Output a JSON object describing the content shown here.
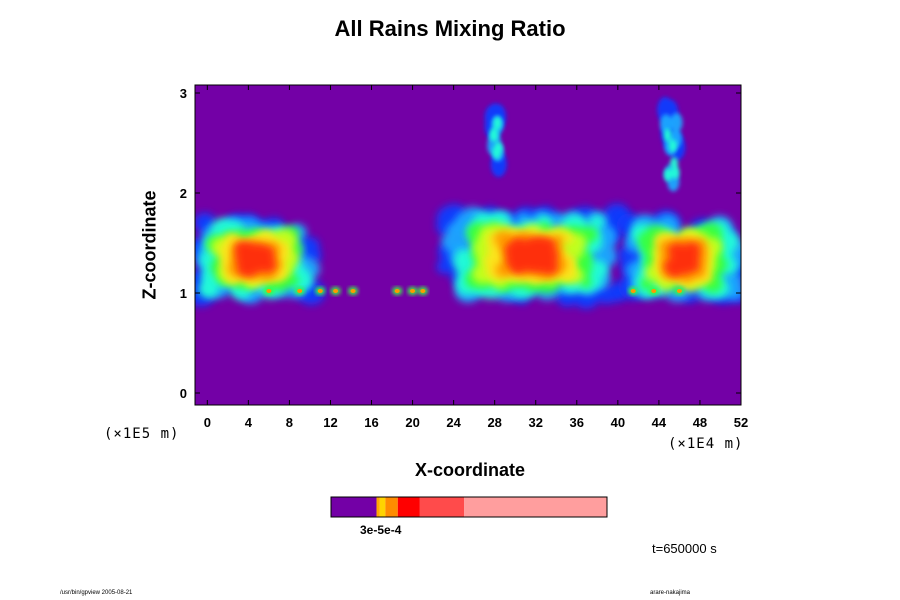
{
  "chart_data": {
    "type": "heatmap",
    "title": "All Rains Mixing Ratio",
    "xlabel": "X-coordinate",
    "ylabel": "Z-coordinate",
    "x_multiplier": "(×1E4 m)",
    "y_multiplier": "(×1E5 m)",
    "x_ticks": [
      0,
      4,
      8,
      12,
      16,
      20,
      24,
      28,
      32,
      36,
      40,
      44,
      48,
      52
    ],
    "y_ticks": [
      0,
      1,
      2,
      3
    ],
    "xlim": [
      -1.2,
      52
    ],
    "ylim": [
      -0.12,
      3.08
    ],
    "background_color": "#7300a6",
    "colorbar": {
      "colors": [
        "#7300a6",
        "#ffaa00",
        "#ff8c00",
        "#ff0000",
        "#ff4b4b",
        "#ff9e9e"
      ],
      "label_text": "3e-5e-4"
    },
    "clouds": [
      {
        "name": "left-layer",
        "x_range": [
          -1.2,
          10.5
        ],
        "z_range": [
          0.95,
          1.72
        ]
      },
      {
        "name": "center-layer",
        "x_range": [
          23,
          40
        ],
        "z_range": [
          0.95,
          1.8
        ]
      },
      {
        "name": "right-layer",
        "x_range": [
          41,
          52
        ],
        "z_range": [
          0.95,
          1.72
        ]
      },
      {
        "name": "column-28",
        "x_range": [
          27.7,
          28.5
        ],
        "z_range": [
          2.28,
          2.83
        ]
      },
      {
        "name": "column-45",
        "x_range": [
          44.5,
          45.9
        ],
        "z_range": [
          2.0,
          2.84
        ]
      }
    ]
  },
  "annotations": {
    "time": "t=650000 s",
    "footer_left": "/usr/bin/gpview 2005-08-21",
    "footer_right": "arare-nakajima"
  }
}
